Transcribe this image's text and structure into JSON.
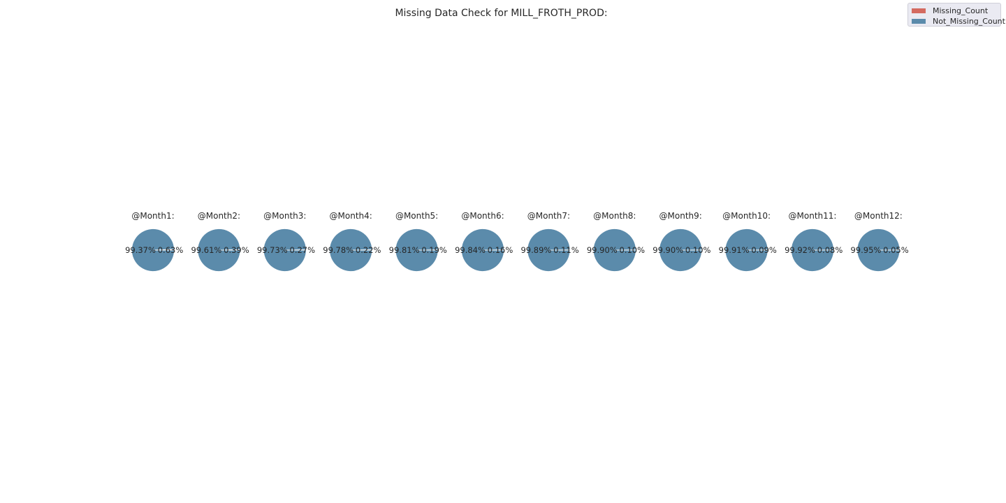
{
  "chart_data": {
    "type": "pie",
    "title": "Missing Data Check for MILL_FROTH_PROD:",
    "legend": {
      "placement": "top-right",
      "entries": [
        {
          "name": "Missing_Count",
          "color": "#d46a60"
        },
        {
          "name": "Not_Missing_Count",
          "color": "#5b8bab"
        }
      ]
    },
    "series_order": [
      "Missing_Count",
      "Not_Missing_Count"
    ],
    "pies": [
      {
        "title": "@Month1:",
        "missing_pct": 0.63,
        "not_missing_pct": 99.37,
        "missing_label": "0.63%",
        "not_missing_label": "99.37%"
      },
      {
        "title": "@Month2:",
        "missing_pct": 0.39,
        "not_missing_pct": 99.61,
        "missing_label": "0.39%",
        "not_missing_label": "99.61%"
      },
      {
        "title": "@Month3:",
        "missing_pct": 0.27,
        "not_missing_pct": 99.73,
        "missing_label": "0.27%",
        "not_missing_label": "99.73%"
      },
      {
        "title": "@Month4:",
        "missing_pct": 0.22,
        "not_missing_pct": 99.78,
        "missing_label": "0.22%",
        "not_missing_label": "99.78%"
      },
      {
        "title": "@Month5:",
        "missing_pct": 0.19,
        "not_missing_pct": 99.81,
        "missing_label": "0.19%",
        "not_missing_label": "99.81%"
      },
      {
        "title": "@Month6:",
        "missing_pct": 0.16,
        "not_missing_pct": 99.84,
        "missing_label": "0.16%",
        "not_missing_label": "99.84%"
      },
      {
        "title": "@Month7:",
        "missing_pct": 0.11,
        "not_missing_pct": 99.89,
        "missing_label": "0.11%",
        "not_missing_label": "99.89%"
      },
      {
        "title": "@Month8:",
        "missing_pct": 0.1,
        "not_missing_pct": 99.9,
        "missing_label": "0.10%",
        "not_missing_label": "99.90%"
      },
      {
        "title": "@Month9:",
        "missing_pct": 0.1,
        "not_missing_pct": 99.9,
        "missing_label": "0.10%",
        "not_missing_label": "99.90%"
      },
      {
        "title": "@Month10:",
        "missing_pct": 0.09,
        "not_missing_pct": 99.91,
        "missing_label": "0.09%",
        "not_missing_label": "99.91%"
      },
      {
        "title": "@Month11:",
        "missing_pct": 0.08,
        "not_missing_pct": 99.92,
        "missing_label": "0.08%",
        "not_missing_label": "99.92%"
      },
      {
        "title": "@Month12:",
        "missing_pct": 0.05,
        "not_missing_pct": 99.95,
        "missing_label": "0.05%",
        "not_missing_label": "99.95%"
      }
    ]
  }
}
